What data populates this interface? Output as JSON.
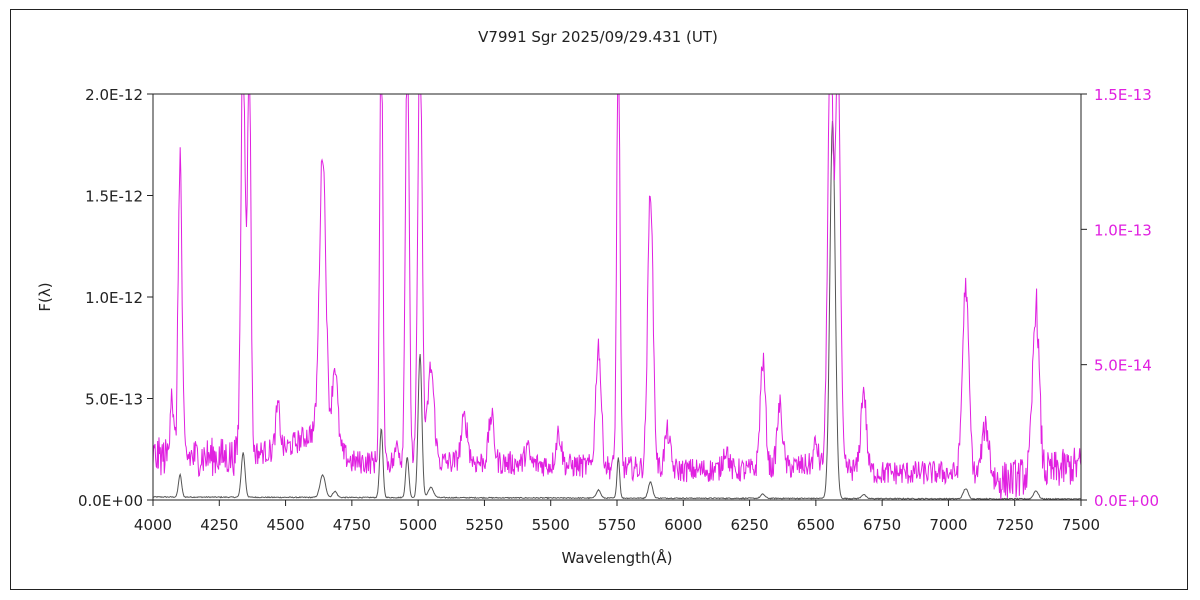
{
  "chart_data": {
    "type": "line",
    "title": "V7991 Sgr  2025/09/29.431 (UT)",
    "xlabel": "Wavelength(Å)",
    "ylabel": "F(λ)",
    "xlim": [
      4000,
      7500
    ],
    "ylim_left": [
      0,
      2e-12
    ],
    "ylim_right": [
      0,
      1.5e-13
    ],
    "x_ticks": [
      "4000",
      "4250",
      "4500",
      "4750",
      "5000",
      "5250",
      "5500",
      "5750",
      "6000",
      "6250",
      "6500",
      "6750",
      "7000",
      "7250",
      "7500"
    ],
    "y_ticks_left": [
      "0.0E+00",
      "5.0E-13",
      "1.0E-12",
      "1.5E-12",
      "2.0E-12"
    ],
    "y_ticks_right": [
      "0.0E+00",
      "5.0E-14",
      "1.0E-13",
      "1.5E-13"
    ],
    "grid": false,
    "legend": "none",
    "colors": {
      "series_left": "#555555",
      "series_right": "#e020e0",
      "axis": "#222222"
    },
    "series": [
      {
        "axis": "left",
        "continuum": [
          [
            4000,
            1.5e-14
          ],
          [
            4500,
            1.3e-14
          ],
          [
            5000,
            1.2e-14
          ],
          [
            5500,
            1e-14
          ],
          [
            6000,
            9e-15
          ],
          [
            6500,
            8e-15
          ],
          [
            7000,
            6e-15
          ],
          [
            7500,
            5e-15
          ]
        ],
        "lines": [
          {
            "x": 4102,
            "h": 1.1e-13,
            "w": 6
          },
          {
            "x": 4340,
            "h": 2.2e-13,
            "w": 7
          },
          {
            "x": 4640,
            "h": 1.1e-13,
            "w": 10
          },
          {
            "x": 4686,
            "h": 3e-14,
            "w": 8
          },
          {
            "x": 4861,
            "h": 3.4e-13,
            "w": 6
          },
          {
            "x": 4959,
            "h": 2e-13,
            "w": 6
          },
          {
            "x": 5007,
            "h": 7.1e-13,
            "w": 7
          },
          {
            "x": 5048,
            "h": 5e-14,
            "w": 10
          },
          {
            "x": 5680,
            "h": 4e-14,
            "w": 8
          },
          {
            "x": 5755,
            "h": 2e-13,
            "w": 5
          },
          {
            "x": 5876,
            "h": 8e-14,
            "w": 8
          },
          {
            "x": 6300,
            "h": 2e-14,
            "w": 8
          },
          {
            "x": 6563,
            "h": 1.86e-12,
            "w": 10
          },
          {
            "x": 6680,
            "h": 2e-14,
            "w": 8
          },
          {
            "x": 7065,
            "h": 5e-14,
            "w": 9
          },
          {
            "x": 7330,
            "h": 4e-14,
            "w": 9
          }
        ]
      },
      {
        "axis": "right",
        "continuum": [
          [
            4000,
            1.6e-14
          ],
          [
            4300,
            1.6e-14
          ],
          [
            4500,
            1.9e-14
          ],
          [
            4620,
            2.6e-14
          ],
          [
            4750,
            1.4e-14
          ],
          [
            5000,
            1.4e-14
          ],
          [
            5250,
            1.4e-14
          ],
          [
            5500,
            1.3e-14
          ],
          [
            5750,
            1.2e-14
          ],
          [
            6000,
            1.1e-14
          ],
          [
            6250,
            1.1e-14
          ],
          [
            6500,
            1.3e-14
          ],
          [
            6750,
            1e-14
          ],
          [
            7000,
            1e-14
          ],
          [
            7200,
            7e-15
          ],
          [
            7500,
            1.3e-14
          ]
        ],
        "lines": [
          {
            "x": 4070,
            "h": 2.6e-14,
            "w": 6
          },
          {
            "x": 4102,
            "h": 1.12e-13,
            "w": 7
          },
          {
            "x": 4340,
            "h": 1.6e-13,
            "w": 8
          },
          {
            "x": 4363,
            "h": 1.6e-13,
            "w": 6
          },
          {
            "x": 4471,
            "h": 1.6e-14,
            "w": 8
          },
          {
            "x": 4640,
            "h": 1.05e-13,
            "w": 12
          },
          {
            "x": 4686,
            "h": 3e-14,
            "w": 10
          },
          {
            "x": 4861,
            "h": 1.6e-13,
            "w": 6
          },
          {
            "x": 4922,
            "h": 8e-15,
            "w": 6
          },
          {
            "x": 4959,
            "h": 1.6e-13,
            "w": 7
          },
          {
            "x": 5007,
            "h": 1.6e-13,
            "w": 8
          },
          {
            "x": 5048,
            "h": 3.5e-14,
            "w": 12
          },
          {
            "x": 5175,
            "h": 1.6e-14,
            "w": 12
          },
          {
            "x": 5276,
            "h": 1.7e-14,
            "w": 10
          },
          {
            "x": 5411,
            "h": 6e-15,
            "w": 8
          },
          {
            "x": 5530,
            "h": 1.2e-14,
            "w": 10
          },
          {
            "x": 5680,
            "h": 4.5e-14,
            "w": 10
          },
          {
            "x": 5755,
            "h": 1.6e-13,
            "w": 6
          },
          {
            "x": 5876,
            "h": 1.04e-13,
            "w": 10
          },
          {
            "x": 5940,
            "h": 1.4e-14,
            "w": 10
          },
          {
            "x": 6160,
            "h": 8e-15,
            "w": 10
          },
          {
            "x": 6300,
            "h": 4e-14,
            "w": 10
          },
          {
            "x": 6364,
            "h": 2.3e-14,
            "w": 10
          },
          {
            "x": 6500,
            "h": 8e-15,
            "w": 8
          },
          {
            "x": 6555,
            "h": 1.6e-13,
            "w": 10
          },
          {
            "x": 6583,
            "h": 1.6e-13,
            "w": 9
          },
          {
            "x": 6680,
            "h": 3e-14,
            "w": 10
          },
          {
            "x": 7065,
            "h": 7e-14,
            "w": 12
          },
          {
            "x": 7140,
            "h": 1.9e-14,
            "w": 14
          },
          {
            "x": 7330,
            "h": 6.3e-14,
            "w": 12
          }
        ]
      }
    ]
  }
}
